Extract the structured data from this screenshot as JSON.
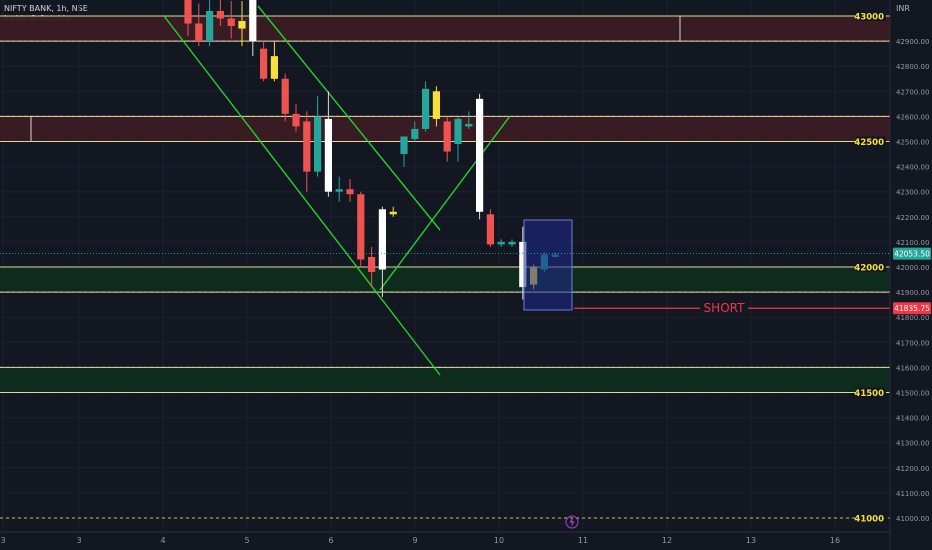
{
  "header": {
    "symbol_line": "NIFTY BANK, 1h, NSE",
    "indicator": "Inside & Outside"
  },
  "currency": "INR",
  "colors": {
    "background": "#131722",
    "up_candle": "#26a69a",
    "down_candle": "#ef5350",
    "outside_candle": "#ffffff",
    "inside_candle": "#f7e03c",
    "trendline": "#22d12a",
    "short_line": "#f23645",
    "resistance_zone": "#3b1c24",
    "support_zone": "#0f2c1d",
    "level_label": "#f7e03c",
    "selection_box": "#1e2a8f"
  },
  "icons": {
    "lightning": "lightning-icon"
  },
  "chart_data": {
    "type": "candlestick",
    "ylim": [
      41000,
      43000
    ],
    "y_ticks": [
      "41000.00",
      "41100.00",
      "41200.00",
      "41300.00",
      "41400.00",
      "41500.00",
      "41600.00",
      "41700.00",
      "41800.00",
      "41900.00",
      "42000.00",
      "42100.00",
      "42200.00",
      "42300.00",
      "42400.00",
      "42500.00",
      "42600.00",
      "42700.00",
      "42800.00",
      "42900.00",
      "43000.00"
    ],
    "x_ticks": [
      "3",
      "3",
      "4",
      "5",
      "6",
      "9",
      "10",
      "11",
      "12",
      "13",
      "16"
    ],
    "level_labels": [
      {
        "price": 43000,
        "text": "43000"
      },
      {
        "price": 42500,
        "text": "42500"
      },
      {
        "price": 42000,
        "text": "42000"
      },
      {
        "price": 41500,
        "text": "41500"
      },
      {
        "price": 41000,
        "text": "41000"
      }
    ],
    "dashed_levels": [
      43000,
      42900,
      42600,
      42500,
      42000,
      41900,
      41600,
      41500,
      41000
    ],
    "zones": [
      {
        "kind": "resistance",
        "from": 42900,
        "to": 43000
      },
      {
        "kind": "resistance",
        "from": 42500,
        "to": 42600
      },
      {
        "kind": "support",
        "from": 41900,
        "to": 42000
      },
      {
        "kind": "support",
        "from": 41500,
        "to": 41600
      }
    ],
    "current_price": {
      "value": 42053.5,
      "label": "42053.50"
    },
    "short_level": {
      "value": 41835.75,
      "label": "41835.75",
      "text": "SHORT"
    },
    "candles": [
      {
        "o": 43110,
        "h": 43150,
        "c": 42970,
        "l": 42920,
        "k": "down"
      },
      {
        "o": 42970,
        "h": 43050,
        "c": 42900,
        "l": 42880,
        "k": "down"
      },
      {
        "o": 42900,
        "h": 43080,
        "c": 43020,
        "l": 42880,
        "k": "up"
      },
      {
        "o": 43020,
        "h": 43100,
        "c": 42990,
        "l": 42960,
        "k": "down"
      },
      {
        "o": 42990,
        "h": 43060,
        "c": 42960,
        "l": 42910,
        "k": "down"
      },
      {
        "o": 42950,
        "h": 43060,
        "c": 42980,
        "l": 42880,
        "k": "inside"
      },
      {
        "o": 43120,
        "h": 43160,
        "c": 42900,
        "l": 42840,
        "k": "outside"
      },
      {
        "o": 42870,
        "h": 42900,
        "c": 42750,
        "l": 42740,
        "k": "down"
      },
      {
        "o": 42750,
        "h": 42900,
        "c": 42840,
        "l": 42740,
        "k": "inside"
      },
      {
        "o": 42750,
        "h": 42770,
        "c": 42610,
        "l": 42580,
        "k": "down"
      },
      {
        "o": 42610,
        "h": 42650,
        "c": 42560,
        "l": 42540,
        "k": "down"
      },
      {
        "o": 42580,
        "h": 42620,
        "c": 42380,
        "l": 42300,
        "k": "down"
      },
      {
        "o": 42380,
        "h": 42680,
        "c": 42600,
        "l": 42360,
        "k": "up"
      },
      {
        "o": 42590,
        "h": 42700,
        "c": 42300,
        "l": 42280,
        "k": "outside"
      },
      {
        "o": 42300,
        "h": 42360,
        "c": 42310,
        "l": 42260,
        "k": "up"
      },
      {
        "o": 42310,
        "h": 42350,
        "c": 42290,
        "l": 42260,
        "k": "down"
      },
      {
        "o": 42290,
        "h": 42300,
        "c": 42030,
        "l": 42000,
        "k": "down"
      },
      {
        "o": 42040,
        "h": 42080,
        "c": 41980,
        "l": 41920,
        "k": "down"
      },
      {
        "o": 41990,
        "h": 42240,
        "c": 42230,
        "l": 41880,
        "k": "outside"
      },
      {
        "o": 42220,
        "h": 42240,
        "c": 42210,
        "l": 42200,
        "k": "inside"
      },
      {
        "o": 42450,
        "h": 42520,
        "c": 42520,
        "l": 42400,
        "k": "up"
      },
      {
        "o": 42510,
        "h": 42580,
        "c": 42550,
        "l": 42500,
        "k": "up"
      },
      {
        "o": 42550,
        "h": 42740,
        "c": 42710,
        "l": 42540,
        "k": "up"
      },
      {
        "o": 42700,
        "h": 42720,
        "c": 42590,
        "l": 42560,
        "k": "inside"
      },
      {
        "o": 42580,
        "h": 42600,
        "c": 42460,
        "l": 42420,
        "k": "down"
      },
      {
        "o": 42490,
        "h": 42600,
        "c": 42590,
        "l": 42420,
        "k": "up"
      },
      {
        "o": 42570,
        "h": 42620,
        "c": 42560,
        "l": 42550,
        "k": "up"
      },
      {
        "o": 42670,
        "h": 42690,
        "c": 42220,
        "l": 42190,
        "k": "outside"
      },
      {
        "o": 42210,
        "h": 42230,
        "c": 42090,
        "l": 42080,
        "k": "down"
      },
      {
        "o": 42100,
        "h": 42110,
        "c": 42090,
        "l": 42080,
        "k": "up"
      },
      {
        "o": 42100,
        "h": 42110,
        "c": 42090,
        "l": 42080,
        "k": "up"
      },
      {
        "o": 42100,
        "h": 42160,
        "c": 41920,
        "l": 41870,
        "k": "outside"
      },
      {
        "o": 41930,
        "h": 42010,
        "c": 42000,
        "l": 41910,
        "k": "inside"
      },
      {
        "o": 41990,
        "h": 42060,
        "c": 42050,
        "l": 41980,
        "k": "up"
      },
      {
        "o": 42050,
        "h": 42060,
        "c": 42040,
        "l": 42040,
        "k": "up"
      }
    ]
  }
}
